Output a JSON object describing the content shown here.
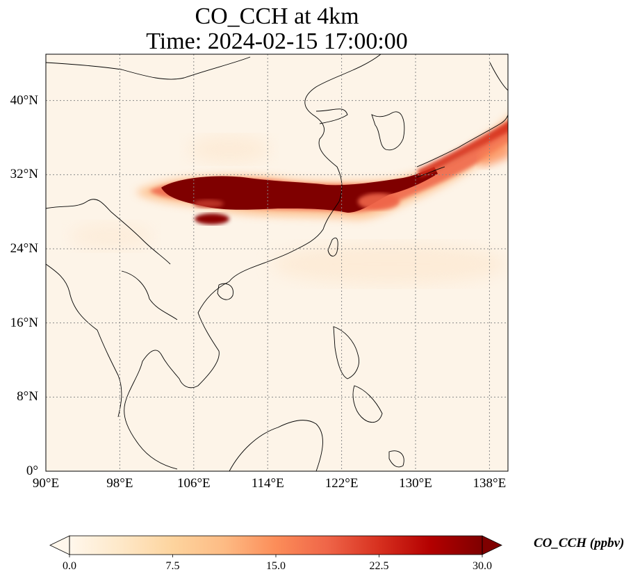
{
  "title": {
    "line1": "CO_CCH at 4km",
    "line2": "Time: 2024-02-15 17:00:00"
  },
  "map": {
    "lon_range": [
      90,
      140
    ],
    "lat_range": [
      0,
      45
    ],
    "grid_lons": [
      90,
      98,
      106,
      114,
      122,
      130,
      138
    ],
    "grid_lats": [
      0,
      8,
      16,
      24,
      32,
      40
    ],
    "lon_labels": [
      "90°E",
      "98°E",
      "106°E",
      "114°E",
      "122°E",
      "130°E",
      "138°E"
    ],
    "lat_labels": [
      "0°",
      "8°N",
      "16°N",
      "24°N",
      "32°N",
      "40°N"
    ],
    "background_color": "#fdf4e8",
    "grid_style": "dotted gray"
  },
  "colorbar": {
    "label": "CO_CCH (ppbv)",
    "ticks": [
      "0.0",
      "7.5",
      "15.0",
      "22.5",
      "30.0"
    ],
    "min": 0,
    "max": 30,
    "extend": "both",
    "colormap": "OrRd",
    "colors": [
      "#fff7ec",
      "#fee8c8",
      "#fdd49e",
      "#fdbb84",
      "#fc8d59",
      "#ef6548",
      "#d7301f",
      "#b30000",
      "#7f0000"
    ]
  },
  "plume": {
    "description_color_core": "#7f0000",
    "description_color_edge": "#ef6548"
  }
}
